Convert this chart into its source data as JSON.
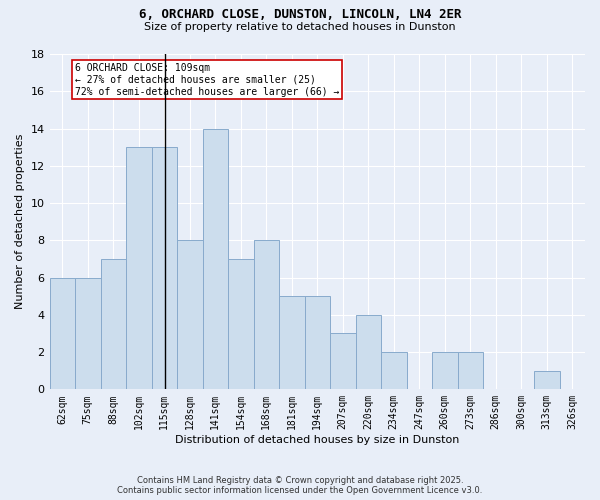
{
  "title_line1": "6, ORCHARD CLOSE, DUNSTON, LINCOLN, LN4 2ER",
  "title_line2": "Size of property relative to detached houses in Dunston",
  "xlabel": "Distribution of detached houses by size in Dunston",
  "ylabel": "Number of detached properties",
  "categories": [
    "62sqm",
    "75sqm",
    "88sqm",
    "102sqm",
    "115sqm",
    "128sqm",
    "141sqm",
    "154sqm",
    "168sqm",
    "181sqm",
    "194sqm",
    "207sqm",
    "220sqm",
    "234sqm",
    "247sqm",
    "260sqm",
    "273sqm",
    "286sqm",
    "300sqm",
    "313sqm",
    "326sqm"
  ],
  "values": [
    6,
    6,
    7,
    13,
    13,
    8,
    14,
    7,
    8,
    5,
    5,
    3,
    4,
    2,
    0,
    2,
    2,
    0,
    0,
    1,
    0
  ],
  "bar_color": "#ccdded",
  "bar_edge_color": "#88aacc",
  "background_color": "#e8eef8",
  "grid_color": "#ffffff",
  "property_line_x": 8,
  "bin_edges": [
    0,
    1,
    2,
    3,
    4,
    5,
    6,
    7,
    8,
    9,
    10,
    11,
    12,
    13,
    14,
    15,
    16,
    17,
    18,
    19,
    20,
    21
  ],
  "annotation_text": "6 ORCHARD CLOSE: 109sqm\n← 27% of detached houses are smaller (25)\n72% of semi-detached houses are larger (66) →",
  "annotation_box_color": "#ffffff",
  "annotation_box_edge_color": "#cc0000",
  "property_line_color": "#000000",
  "ylim": [
    0,
    18
  ],
  "yticks": [
    0,
    2,
    4,
    6,
    8,
    10,
    12,
    14,
    16,
    18
  ],
  "footnote_line1": "Contains HM Land Registry data © Crown copyright and database right 2025.",
  "footnote_line2": "Contains public sector information licensed under the Open Government Licence v3.0."
}
